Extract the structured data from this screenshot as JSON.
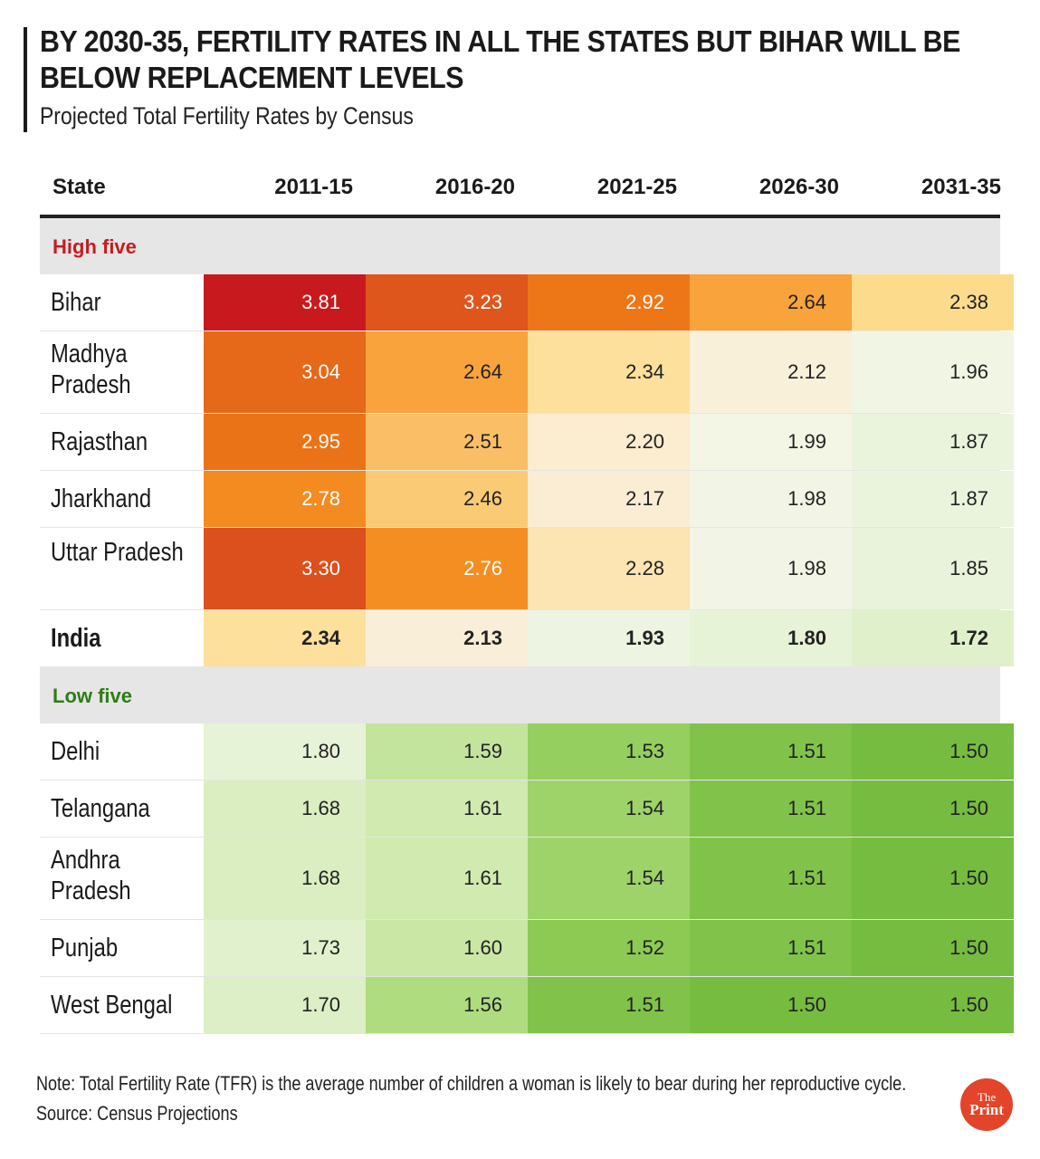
{
  "title_line1": "BY 2030-35, FERTILITY RATES IN ALL THE STATES BUT BIHAR WILL BE",
  "title_line2": "BELOW REPLACEMENT LEVELS",
  "subtitle": "Projected Total Fertility Rates by Census",
  "chart_data": {
    "type": "table",
    "title": "BY 2030-35, FERTILITY RATES IN ALL THE STATES BUT BIHAR WILL BE BELOW REPLACEMENT LEVELS",
    "subtitle": "Projected Total Fertility Rates by Census",
    "columns": [
      "State",
      "2011-15",
      "2016-20",
      "2021-25",
      "2026-30",
      "2031-35"
    ],
    "groups": [
      {
        "label": "High five",
        "rows": [
          {
            "state": "Bihar",
            "values": [
              "3.81",
              "3.23",
              "2.92",
              "2.64",
              "2.38"
            ]
          },
          {
            "state": "Madhya Pradesh",
            "values": [
              "3.04",
              "2.64",
              "2.34",
              "2.12",
              "1.96"
            ]
          },
          {
            "state": "Rajasthan",
            "values": [
              "2.95",
              "2.51",
              "2.20",
              "1.99",
              "1.87"
            ]
          },
          {
            "state": "Jharkhand",
            "values": [
              "2.78",
              "2.46",
              "2.17",
              "1.98",
              "1.87"
            ]
          },
          {
            "state": "Uttar Pradesh",
            "values": [
              "3.30",
              "2.76",
              "2.28",
              "1.98",
              "1.85"
            ]
          }
        ]
      },
      {
        "label": "India",
        "rows": [
          {
            "state": "India",
            "values": [
              "2.34",
              "2.13",
              "1.93",
              "1.80",
              "1.72"
            ]
          }
        ]
      },
      {
        "label": "Low five",
        "rows": [
          {
            "state": "Delhi",
            "values": [
              "1.80",
              "1.59",
              "1.53",
              "1.51",
              "1.50"
            ]
          },
          {
            "state": "Telangana",
            "values": [
              "1.68",
              "1.61",
              "1.54",
              "1.51",
              "1.50"
            ]
          },
          {
            "state": "Andhra Pradesh",
            "values": [
              "1.68",
              "1.61",
              "1.54",
              "1.51",
              "1.50"
            ]
          },
          {
            "state": "Punjab",
            "values": [
              "1.73",
              "1.60",
              "1.52",
              "1.51",
              "1.50"
            ]
          },
          {
            "state": "West Bengal",
            "values": [
              "1.70",
              "1.56",
              "1.51",
              "1.50",
              "1.50"
            ]
          }
        ]
      }
    ]
  },
  "colors": {
    "high_label": "#c41e1e",
    "low_label": "#2e7d16",
    "group_bg": "#e6e6e6",
    "logo": "#e2452a"
  },
  "footer": {
    "note": "Note: Total Fertility Rate (TFR) is the average number of children a woman is likely to bear during her reproductive cycle.",
    "source": "Source: Census Projections"
  },
  "logo": {
    "line1": "The",
    "line2": "Print"
  }
}
